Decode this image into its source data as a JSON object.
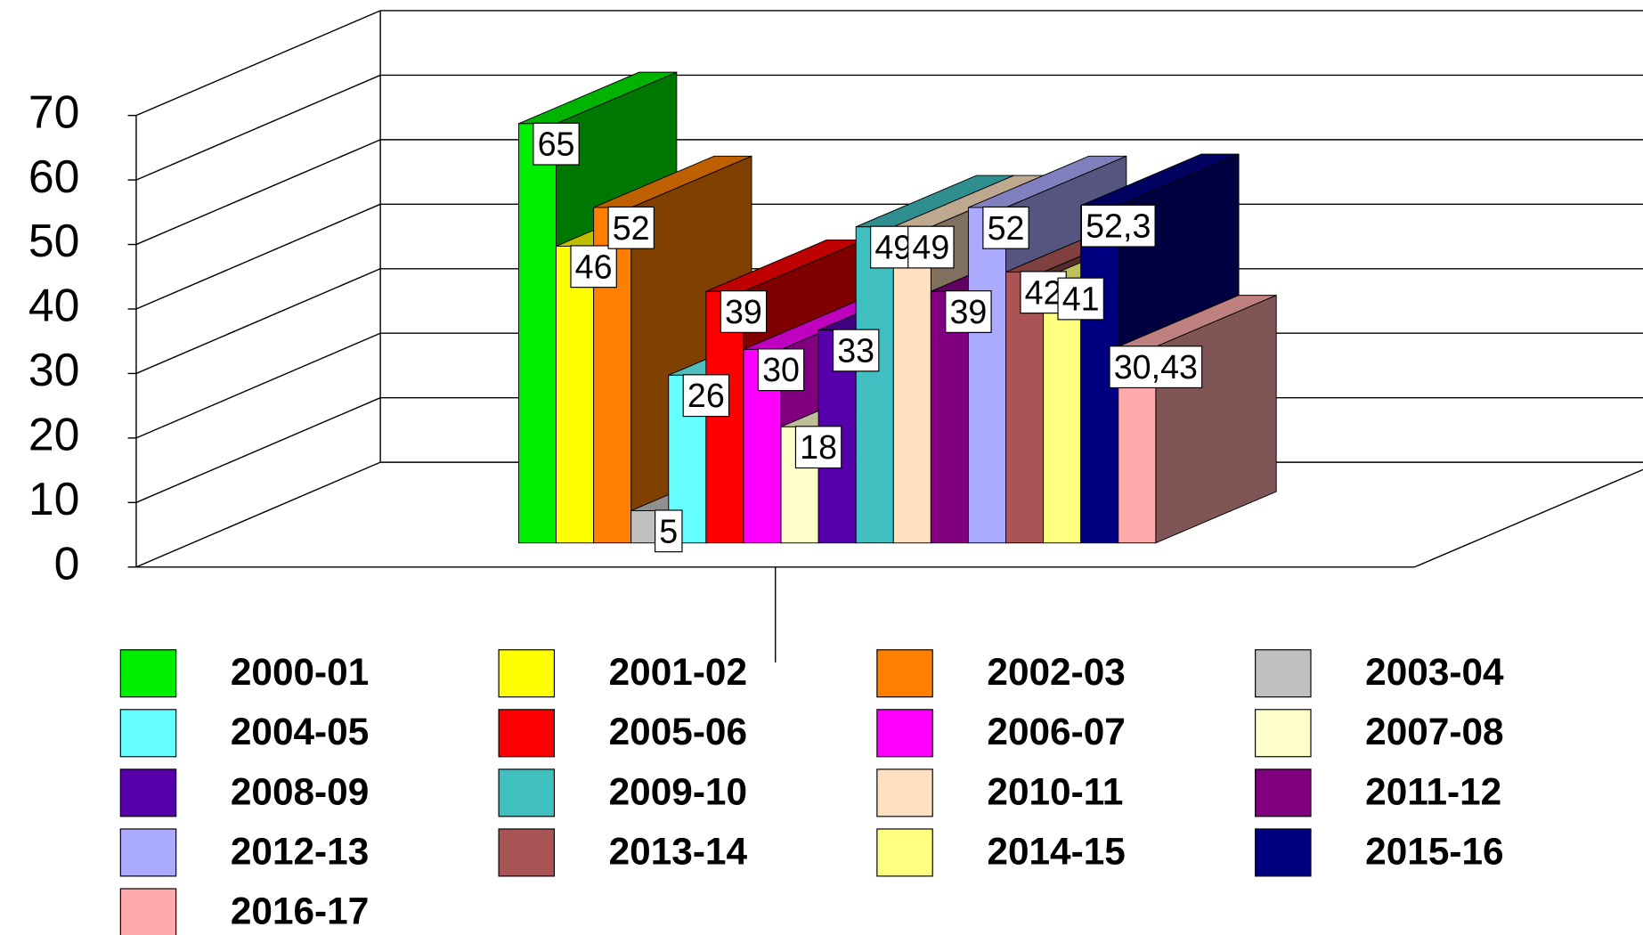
{
  "chart_data": {
    "type": "bar3d",
    "categories": [
      null
    ],
    "ylim": [
      0,
      70
    ],
    "yticks": [
      0,
      10,
      20,
      30,
      40,
      50,
      60,
      70
    ],
    "grid": true,
    "legend": "bottom",
    "series": [
      {
        "name": "2000-01",
        "color": "#00ee00",
        "values": [
          65
        ]
      },
      {
        "name": "2001-02",
        "color": "#ffff00",
        "values": [
          46
        ]
      },
      {
        "name": "2002-03",
        "color": "#ff8000",
        "values": [
          52
        ]
      },
      {
        "name": "2003-04",
        "color": "#c0c0c0",
        "values": [
          5
        ]
      },
      {
        "name": "2004-05",
        "color": "#66ffff",
        "values": [
          26
        ]
      },
      {
        "name": "2005-06",
        "color": "#ff0000",
        "values": [
          39
        ]
      },
      {
        "name": "2006-07",
        "color": "#ff00ff",
        "values": [
          30
        ]
      },
      {
        "name": "2007-08",
        "color": "#ffffcc",
        "values": [
          18
        ]
      },
      {
        "name": "2008-09",
        "color": "#5500aa",
        "values": [
          33
        ]
      },
      {
        "name": "2009-10",
        "color": "#3fbfbf",
        "values": [
          49
        ]
      },
      {
        "name": "2010-11",
        "color": "#ffe0c0",
        "values": [
          49
        ]
      },
      {
        "name": "2011-12",
        "color": "#800080",
        "values": [
          39
        ]
      },
      {
        "name": "2012-13",
        "color": "#aaaaff",
        "values": [
          52
        ]
      },
      {
        "name": "2013-14",
        "color": "#aa5555",
        "values": [
          42
        ]
      },
      {
        "name": "2014-15",
        "color": "#ffff80",
        "values": [
          41
        ]
      },
      {
        "name": "2015-16",
        "color": "#000080",
        "values": [
          52.3
        ],
        "value_labels": [
          "52,3"
        ]
      },
      {
        "name": "2016-17",
        "color": "#ffaaaa",
        "values": [
          30.43
        ],
        "value_labels": [
          "30,43"
        ]
      }
    ]
  }
}
